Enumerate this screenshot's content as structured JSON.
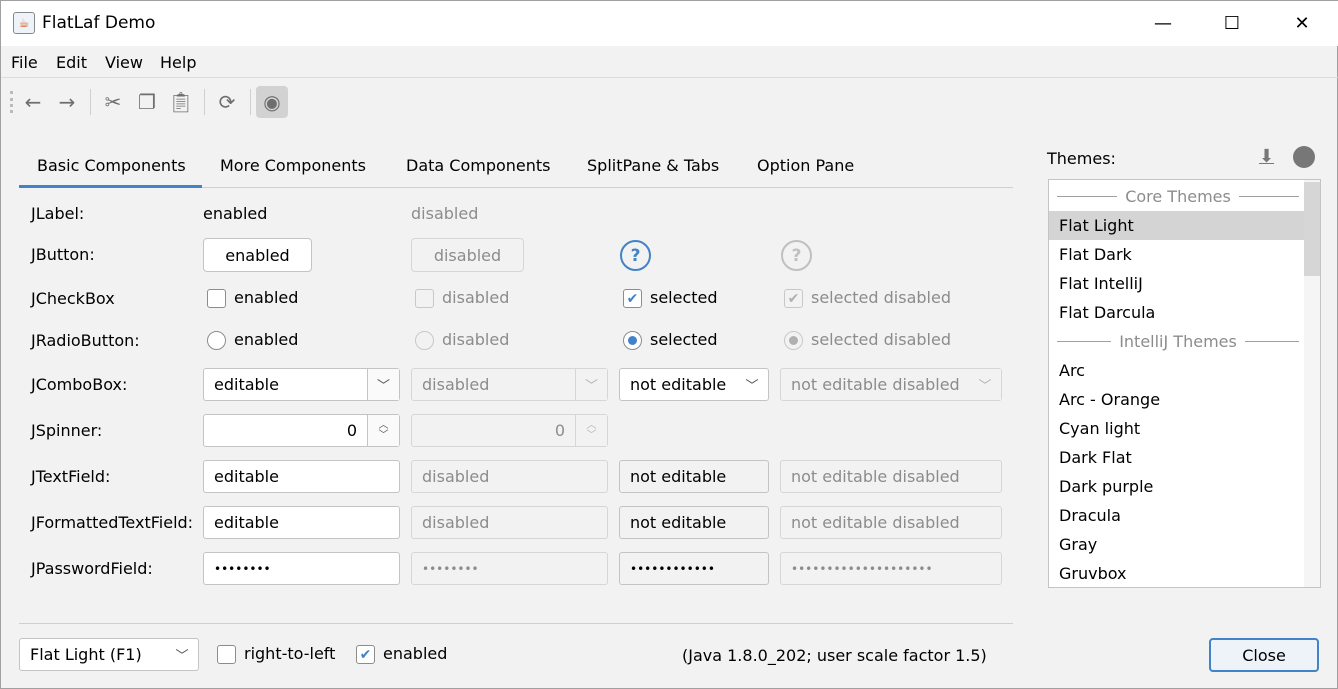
{
  "window": {
    "title": "FlatLaf Demo"
  },
  "menu": [
    "File",
    "Edit",
    "View",
    "Help"
  ],
  "tabs": [
    "Basic Components",
    "More Components",
    "Data Components",
    "SplitPane & Tabs",
    "Option Pane"
  ],
  "rows": {
    "label": {
      "name": "JLabel:",
      "enabled": "enabled",
      "disabled": "disabled"
    },
    "button": {
      "name": "JButton:",
      "enabled": "enabled",
      "disabled": "disabled",
      "help": "?"
    },
    "checkbox": {
      "name": "JCheckBox",
      "enabled": "enabled",
      "disabled": "disabled",
      "selected": "selected",
      "selected_disabled": "selected disabled"
    },
    "radio": {
      "name": "JRadioButton:",
      "enabled": "enabled",
      "disabled": "disabled",
      "selected": "selected",
      "selected_disabled": "selected disabled"
    },
    "combo": {
      "name": "JComboBox:",
      "editable": "editable",
      "disabled": "disabled",
      "not_editable": "not editable",
      "not_editable_disabled": "not editable disabled"
    },
    "spinner": {
      "name": "JSpinner:",
      "value": "0",
      "disabled_value": "0"
    },
    "textfield": {
      "name": "JTextField:",
      "editable": "editable",
      "disabled": "disabled",
      "not_editable": "not editable",
      "not_editable_disabled": "not editable disabled"
    },
    "formatted": {
      "name": "JFormattedTextField:",
      "editable": "editable",
      "disabled": "disabled",
      "not_editable": "not editable",
      "not_editable_disabled": "not editable disabled"
    },
    "password": {
      "name": "JPasswordField:",
      "editable": "••••••••",
      "disabled": "••••••••",
      "not_editable": "••••••••••••",
      "not_editable_disabled": "••••••••••••••••••••"
    }
  },
  "themes": {
    "label": "Themes:",
    "items": [
      {
        "header": "Core Themes"
      },
      {
        "name": "Flat Light",
        "selected": true
      },
      {
        "name": "Flat Dark"
      },
      {
        "name": "Flat IntelliJ"
      },
      {
        "name": "Flat Darcula"
      },
      {
        "header": "IntelliJ Themes"
      },
      {
        "name": "Arc"
      },
      {
        "name": "Arc - Orange"
      },
      {
        "name": "Cyan light"
      },
      {
        "name": "Dark Flat"
      },
      {
        "name": "Dark purple"
      },
      {
        "name": "Dracula"
      },
      {
        "name": "Gray"
      },
      {
        "name": "Gruvbox"
      }
    ]
  },
  "bottom": {
    "theme_combo": "Flat Light (F1)",
    "rtl": "right-to-left",
    "enabled": "enabled",
    "info": "(Java 1.8.0_202;  user scale factor 1.5)",
    "close": "Close"
  },
  "colors": {
    "accent": "#4083c9",
    "selected_row": "#d4d4d4"
  }
}
